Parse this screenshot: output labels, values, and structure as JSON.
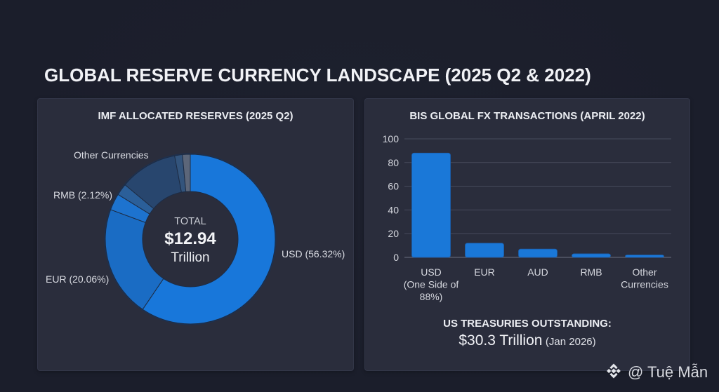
{
  "page": {
    "title": "GLOBAL RESERVE CURRENCY LANDSCAPE (2025 Q2 & 2022)"
  },
  "chart_data": [
    {
      "type": "pie",
      "variant": "donut",
      "title": "IMF ALLOCATED RESERVES (2025 Q2)",
      "center": {
        "top": "TOTAL",
        "value": "$12.94",
        "unit": "Trillion"
      },
      "segments": [
        {
          "name": "USD",
          "value": 56.32,
          "label": "USD (56.32%)",
          "color": "#1877da"
        },
        {
          "name": "EUR",
          "value": 20.06,
          "label": "EUR (20.06%)",
          "color": "#1a6cc4"
        },
        {
          "name": "unlabeled-1",
          "value": 3.0,
          "label": "",
          "color": "#1d73cf"
        },
        {
          "name": "RMB",
          "value": 2.12,
          "label": "RMB (2.12%)",
          "color": "#2b5f99"
        },
        {
          "name": "Other Currencies",
          "value": 10.4,
          "label": "Other Currencies",
          "color": "#28466e"
        },
        {
          "name": "unlabeled-2",
          "value": 1.4,
          "label": "",
          "color": "#33547c"
        },
        {
          "name": "unlabeled-3",
          "value": 1.4,
          "label": "",
          "color": "#5c6679"
        }
      ]
    },
    {
      "type": "bar",
      "title": "BIS GLOBAL FX TRANSACTIONS (APRIL 2022)",
      "categories": [
        "USD (One Side of 88%)",
        "EUR",
        "AUD",
        "RMB",
        "Other Currencies"
      ],
      "category_lines": [
        [
          "USD",
          "(One Side of",
          "88%)"
        ],
        [
          "EUR"
        ],
        [
          "AUD"
        ],
        [
          "RMB"
        ],
        [
          "Other",
          "Currencies"
        ]
      ],
      "values": [
        88,
        12,
        7,
        3,
        2
      ],
      "xlabel": "",
      "ylabel": "",
      "ylim": [
        0,
        100
      ],
      "y_ticks": [
        0,
        20,
        40,
        60,
        80,
        100
      ],
      "grid": true,
      "bar_color": "#1a78d8"
    }
  ],
  "treasuries": {
    "title": "US TREASURIES OUTSTANDING:",
    "value": "$30.3 Trillion",
    "date": "(Jan 2026)"
  },
  "watermark": {
    "icon": "diamond-logo-icon",
    "text": "@ Tuệ Mẫn"
  }
}
